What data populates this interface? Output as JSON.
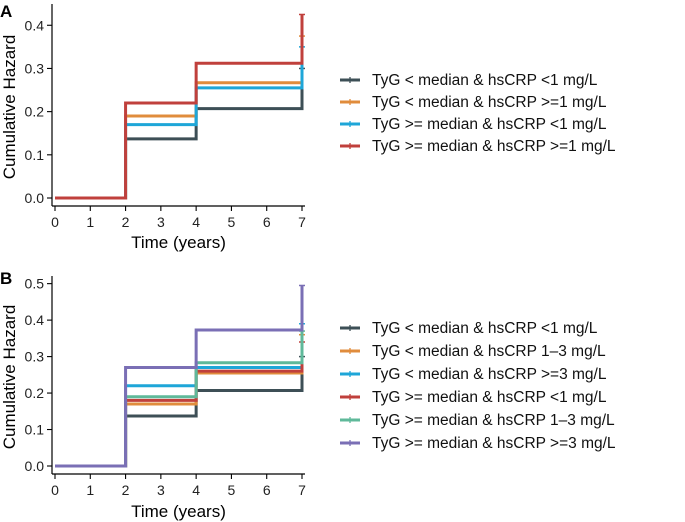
{
  "chart_data": [
    {
      "panel_label": "A",
      "type": "line",
      "step": true,
      "xlabel": "Time (years)",
      "ylabel": "Cumulative Hazard",
      "xlim": [
        0,
        7
      ],
      "ylim": [
        0,
        0.44
      ],
      "xticks": [
        0,
        1,
        2,
        3,
        4,
        5,
        6,
        7
      ],
      "yticks": [
        0.0,
        0.1,
        0.2,
        0.3,
        0.4
      ],
      "ytick_labels": [
        "0.0",
        "0.1",
        "0.2",
        "0.3",
        "0.4"
      ],
      "grid": false,
      "legend_position": "right",
      "series": [
        {
          "name": "TyG < median & hsCRP <1 mg/L",
          "color": "#3d4f56",
          "steps": [
            [
              0,
              0
            ],
            [
              2,
              0.137
            ],
            [
              4,
              0.207
            ],
            [
              7,
              0.3
            ]
          ]
        },
        {
          "name": "TyG < median & hsCRP >=1 mg/L",
          "color": "#e08c3c",
          "steps": [
            [
              0,
              0
            ],
            [
              2,
              0.19
            ],
            [
              4,
              0.267
            ],
            [
              7,
              0.375
            ]
          ]
        },
        {
          "name": "TyG >= median & hsCRP <1 mg/L",
          "color": "#1ea6d8",
          "steps": [
            [
              0,
              0
            ],
            [
              2,
              0.17
            ],
            [
              4,
              0.255
            ],
            [
              7,
              0.35
            ]
          ]
        },
        {
          "name": "TyG >= median & hsCRP >=1 mg/L",
          "color": "#c0403c",
          "steps": [
            [
              0,
              0
            ],
            [
              2,
              0.22
            ],
            [
              4,
              0.312
            ],
            [
              7,
              0.425
            ]
          ]
        }
      ]
    },
    {
      "panel_label": "B",
      "type": "line",
      "step": true,
      "xlabel": "Time (years)",
      "ylabel": "Cumulative Hazard",
      "xlim": [
        0,
        7
      ],
      "ylim": [
        0,
        0.51
      ],
      "xticks": [
        0,
        1,
        2,
        3,
        4,
        5,
        6,
        7
      ],
      "yticks": [
        0.0,
        0.1,
        0.2,
        0.3,
        0.4,
        0.5
      ],
      "ytick_labels": [
        "0.0",
        "0.1",
        "0.2",
        "0.3",
        "0.4",
        "0.5"
      ],
      "grid": false,
      "legend_position": "right",
      "series": [
        {
          "name": "TyG < median & hsCRP <1 mg/L",
          "color": "#3d4f56",
          "steps": [
            [
              0,
              0
            ],
            [
              2,
              0.137
            ],
            [
              4,
              0.207
            ],
            [
              7,
              0.3
            ]
          ]
        },
        {
          "name": "TyG < median & hsCRP 1–3 mg/L",
          "color": "#e08c3c",
          "steps": [
            [
              0,
              0
            ],
            [
              2,
              0.17
            ],
            [
              4,
              0.255
            ],
            [
              7,
              0.36
            ]
          ]
        },
        {
          "name": "TyG < median & hsCRP >=3 mg/L",
          "color": "#1ea6d8",
          "steps": [
            [
              0,
              0
            ],
            [
              2,
              0.22
            ],
            [
              4,
              0.27
            ],
            [
              7,
              0.39
            ]
          ]
        },
        {
          "name": "TyG >= median & hsCRP <1 mg/L",
          "color": "#c0403c",
          "steps": [
            [
              0,
              0
            ],
            [
              2,
              0.18
            ],
            [
              4,
              0.26
            ],
            [
              7,
              0.34
            ]
          ]
        },
        {
          "name": "TyG >= median & hsCRP 1–3 mg/L",
          "color": "#5fb99a",
          "steps": [
            [
              0,
              0
            ],
            [
              2,
              0.19
            ],
            [
              4,
              0.283
            ],
            [
              7,
              0.37
            ]
          ]
        },
        {
          "name": "TyG >= median & hsCRP >=3 mg/L",
          "color": "#7a6fb5",
          "steps": [
            [
              0,
              0
            ],
            [
              2,
              0.27
            ],
            [
              4,
              0.373
            ],
            [
              7,
              0.495
            ]
          ]
        }
      ]
    }
  ]
}
